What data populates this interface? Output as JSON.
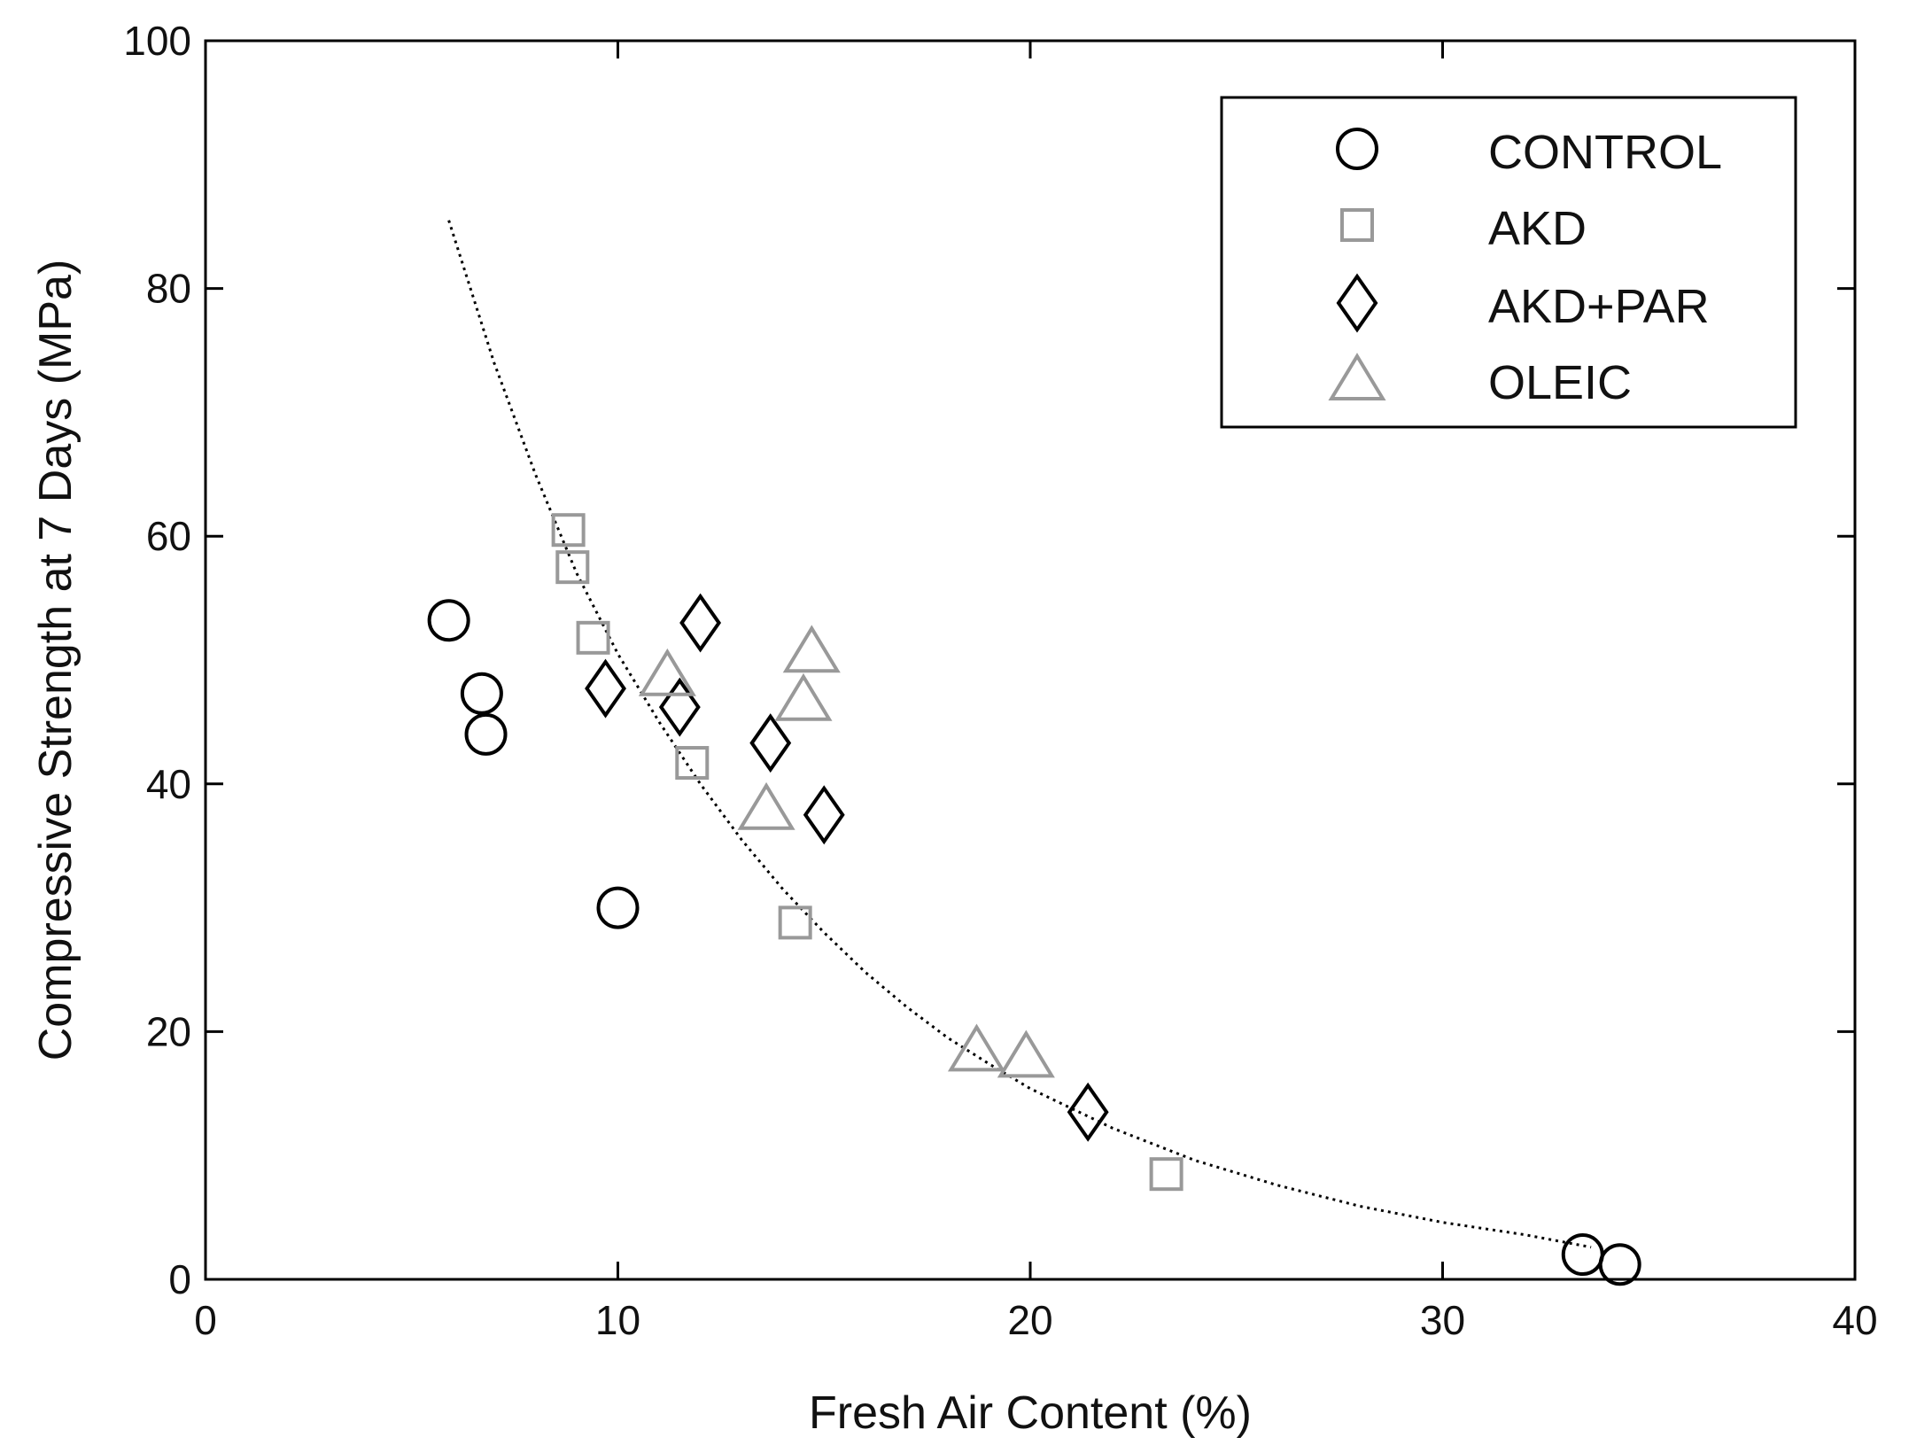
{
  "chart_data": {
    "type": "scatter",
    "title": "",
    "xlabel": "Fresh Air Content (%)",
    "ylabel": "Compressive Strength at 7 Days (MPa)",
    "xlim": [
      0,
      40
    ],
    "ylim": [
      0,
      100
    ],
    "xticks": [
      "0",
      "10",
      "20",
      "30",
      "40"
    ],
    "yticks": [
      "0",
      "20",
      "40",
      "60",
      "80",
      "100"
    ],
    "grid": false,
    "legend_position": "top-right",
    "series": [
      {
        "name": "CONTROL",
        "marker": "circle",
        "color": "#000000",
        "points": [
          [
            5.9,
            53.2
          ],
          [
            6.7,
            47.3
          ],
          [
            6.8,
            44.0
          ],
          [
            10.0,
            30.0
          ],
          [
            33.4,
            2.0
          ],
          [
            34.3,
            1.2
          ]
        ]
      },
      {
        "name": "AKD",
        "marker": "square",
        "color": "#999999",
        "points": [
          [
            8.8,
            60.5
          ],
          [
            8.9,
            57.5
          ],
          [
            9.4,
            51.8
          ],
          [
            11.8,
            41.7
          ],
          [
            14.3,
            28.8
          ],
          [
            23.3,
            8.5
          ]
        ]
      },
      {
        "name": "AKD+PAR",
        "marker": "diamond",
        "color": "#000000",
        "points": [
          [
            12.0,
            53.0
          ],
          [
            9.7,
            47.7
          ],
          [
            11.5,
            46.2
          ],
          [
            13.7,
            43.3
          ],
          [
            15.0,
            37.5
          ],
          [
            21.4,
            13.5
          ]
        ]
      },
      {
        "name": "OLEIC",
        "marker": "triangle",
        "color": "#999999",
        "points": [
          [
            14.7,
            50.7
          ],
          [
            11.2,
            48.8
          ],
          [
            14.5,
            46.8
          ],
          [
            13.6,
            38.0
          ],
          [
            18.7,
            18.5
          ],
          [
            19.9,
            18.0
          ]
        ]
      }
    ],
    "fit_curve": {
      "style": "dotted",
      "color": "#000000",
      "points": [
        [
          5.9,
          85.5
        ],
        [
          7,
          74
        ],
        [
          8,
          65
        ],
        [
          9,
          57
        ],
        [
          10,
          50.5
        ],
        [
          11,
          45
        ],
        [
          12,
          40
        ],
        [
          13,
          35.5
        ],
        [
          14,
          31.5
        ],
        [
          15,
          28
        ],
        [
          16,
          24.8
        ],
        [
          17,
          22
        ],
        [
          18,
          19.5
        ],
        [
          19,
          17.4
        ],
        [
          20,
          15.4
        ],
        [
          22,
          12.2
        ],
        [
          24,
          9.6
        ],
        [
          26,
          7.6
        ],
        [
          28,
          5.9
        ],
        [
          30,
          4.6
        ],
        [
          32,
          3.6
        ],
        [
          33.6,
          2.6
        ]
      ]
    }
  }
}
